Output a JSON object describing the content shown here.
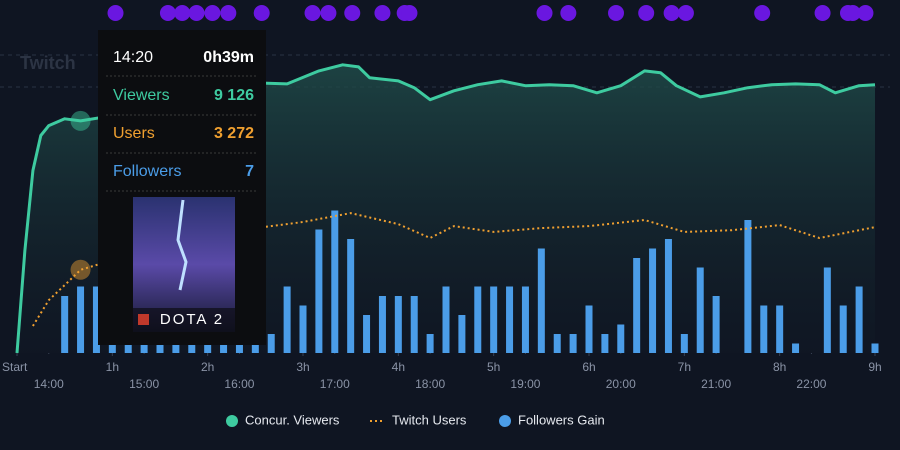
{
  "chart_data": {
    "type": "combo",
    "watermark": "Twitch",
    "xlim": [
      0,
      540
    ],
    "ylim": [
      0,
      12700
    ],
    "y2lim": [
      0,
      34
    ],
    "xticks": [
      {
        "value": 0,
        "label": "Start"
      },
      {
        "value": 60,
        "label": "1h"
      },
      {
        "value": 120,
        "label": "2h"
      },
      {
        "value": 180,
        "label": "3h"
      },
      {
        "value": 240,
        "label": "4h"
      },
      {
        "value": 300,
        "label": "5h"
      },
      {
        "value": 360,
        "label": "6h"
      },
      {
        "value": 420,
        "label": "7h"
      },
      {
        "value": 480,
        "label": "8h"
      },
      {
        "value": 540,
        "label": "9h"
      }
    ],
    "time_ticks": [
      {
        "value": 20,
        "label": "14:00"
      },
      {
        "value": 80,
        "label": "15:00"
      },
      {
        "value": 140,
        "label": "16:00"
      },
      {
        "value": 200,
        "label": "17:00"
      },
      {
        "value": 260,
        "label": "18:00"
      },
      {
        "value": 320,
        "label": "19:00"
      },
      {
        "value": 380,
        "label": "20:00"
      },
      {
        "value": 440,
        "label": "21:00"
      },
      {
        "value": 500,
        "label": "22:00"
      }
    ],
    "event_color": "#6a17e0",
    "events_x": [
      62,
      95,
      104,
      113,
      123,
      133,
      154,
      186,
      196,
      211,
      230,
      244,
      247,
      332,
      347,
      377,
      396,
      412,
      421,
      469,
      507,
      523,
      526,
      534
    ],
    "series": [
      {
        "name": "Concur. Viewers",
        "type": "area",
        "color": "#3ecba0",
        "x": [
          0,
          5,
          10,
          15,
          20,
          30,
          40,
          60,
          90,
          120,
          150,
          170,
          190,
          205,
          215,
          222,
          240,
          250,
          260,
          275,
          290,
          305,
          320,
          335,
          350,
          365,
          380,
          395,
          405,
          415,
          430,
          445,
          460,
          475,
          490,
          505,
          515,
          530,
          540
        ],
        "values": [
          0,
          4040,
          7170,
          8550,
          8940,
          9210,
          9126,
          9330,
          9920,
          10390,
          10620,
          10580,
          11090,
          11330,
          11250,
          10820,
          10700,
          10430,
          9960,
          10310,
          10550,
          10700,
          10510,
          10550,
          10510,
          10230,
          10510,
          11090,
          11020,
          10510,
          10070,
          10230,
          10430,
          10550,
          10580,
          10550,
          10230,
          10510,
          10550
        ]
      },
      {
        "name": "Twitch Users",
        "type": "dotted",
        "color": "#f0a030",
        "x": [
          10,
          20,
          30,
          40,
          60,
          90,
          120,
          150,
          180,
          210,
          240,
          260,
          275,
          300,
          330,
          360,
          395,
          420,
          450,
          480,
          505,
          540
        ],
        "values": [
          1060,
          2080,
          2670,
          3272,
          3650,
          4240,
          4640,
          4910,
          5150,
          5500,
          5070,
          4520,
          4990,
          4760,
          4910,
          4990,
          5230,
          4760,
          4830,
          5030,
          4520,
          4950
        ]
      },
      {
        "name": "Followers Gain",
        "type": "bar",
        "axis": "y2",
        "color": "#4b9de8",
        "x": [
          30,
          40,
          50,
          60,
          70,
          80,
          90,
          100,
          110,
          120,
          130,
          140,
          150,
          160,
          170,
          180,
          190,
          200,
          210,
          220,
          230,
          240,
          250,
          260,
          270,
          280,
          290,
          300,
          310,
          320,
          330,
          340,
          350,
          360,
          370,
          380,
          390,
          400,
          410,
          420,
          430,
          440,
          450,
          460,
          470,
          480,
          490,
          500,
          510,
          520,
          530,
          540
        ],
        "values": [
          6,
          7,
          7,
          1,
          1,
          1,
          1,
          1,
          1,
          1,
          1,
          1,
          1,
          2,
          7,
          5,
          13,
          15,
          12,
          4,
          6,
          6,
          6,
          2,
          7,
          4,
          7,
          7,
          7,
          7,
          11,
          2,
          2,
          5,
          2,
          3,
          10,
          11,
          12,
          2,
          9,
          6,
          0,
          14,
          5,
          5,
          1,
          0,
          9,
          5,
          7,
          1
        ]
      }
    ],
    "tooltip": {
      "x": 40,
      "time": "14:20",
      "duration": "0h39m",
      "game": "DOTA 2",
      "rows": [
        {
          "label": "Viewers",
          "value": "9 126"
        },
        {
          "label": "Users",
          "value": "3 272"
        },
        {
          "label": "Followers",
          "value": "7"
        }
      ]
    }
  }
}
